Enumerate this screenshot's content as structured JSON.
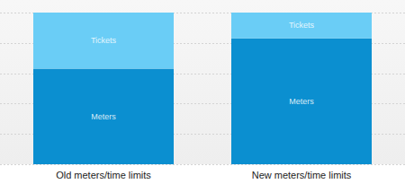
{
  "chart_data": {
    "type": "bar",
    "stacked": true,
    "grid": true,
    "tick_labels": "x",
    "categories": [
      "Old meters/time limits",
      "New meters/time limits"
    ],
    "series": [
      {
        "name": "Meters",
        "color": "#0b8fd0",
        "values": [
          63,
          83
        ]
      },
      {
        "name": "Tickets",
        "color": "#6acdf6",
        "values": [
          37,
          17
        ]
      }
    ],
    "ylim": [
      0,
      100
    ],
    "yticks": [
      0,
      20,
      40,
      60,
      80,
      100
    ]
  }
}
